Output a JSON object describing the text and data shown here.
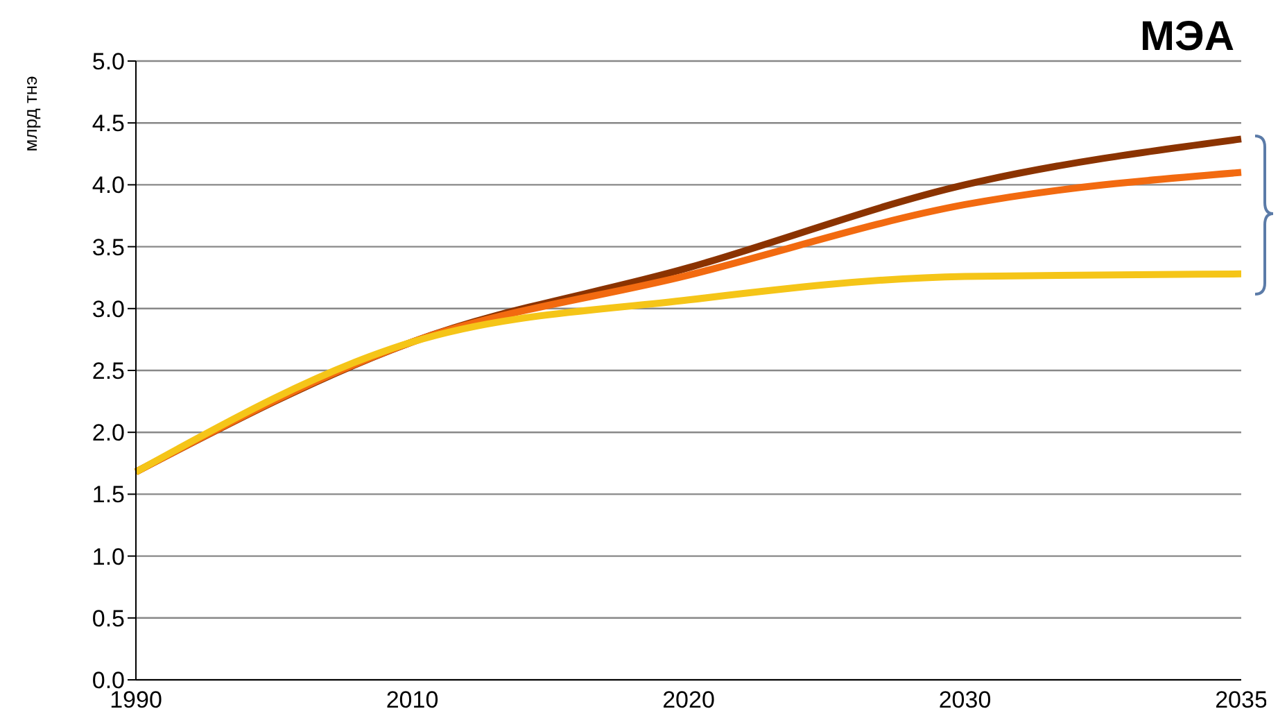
{
  "chart_data": {
    "type": "line",
    "title": "МЭА",
    "ylabel": "млрд тнэ",
    "categories": [
      "1990",
      "2010",
      "2020",
      "2030",
      "2035"
    ],
    "series": [
      {
        "color": "#8b3300",
        "values": [
          1.68,
          2.73,
          3.33,
          4.0,
          4.37
        ]
      },
      {
        "color": "#f26a10",
        "values": [
          1.68,
          2.73,
          3.27,
          3.84,
          4.1
        ]
      },
      {
        "color": "#f5c518",
        "values": [
          1.68,
          2.73,
          3.07,
          3.26,
          3.28
        ]
      }
    ],
    "ylim": [
      0,
      5
    ],
    "yticks": [
      {
        "value": 0,
        "label": "0.0"
      },
      {
        "value": 0.5,
        "label": "0.5"
      },
      {
        "value": 1,
        "label": "1.0"
      },
      {
        "value": 1.5,
        "label": "1.5"
      },
      {
        "value": 2,
        "label": "2.0"
      },
      {
        "value": 2.5,
        "label": "2.5"
      },
      {
        "value": 3,
        "label": "3.0"
      },
      {
        "value": 3.5,
        "label": "3.5"
      },
      {
        "value": 4,
        "label": "4.0"
      },
      {
        "value": 4.5,
        "label": "4.5"
      },
      {
        "value": 5,
        "label": "5.0"
      }
    ],
    "grid": "y",
    "legend": false,
    "marker": "none",
    "line_style": "solid"
  }
}
